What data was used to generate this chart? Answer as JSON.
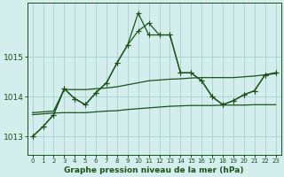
{
  "title": "Graphe pression niveau de la mer (hPa)",
  "bg_color": "#d4eeee",
  "grid_color": "#aad4d4",
  "line_color": "#1a5218",
  "x_labels": [
    "0",
    "1",
    "2",
    "3",
    "4",
    "5",
    "6",
    "7",
    "8",
    "9",
    "10",
    "11",
    "12",
    "13",
    "14",
    "15",
    "16",
    "17",
    "18",
    "19",
    "20",
    "21",
    "22",
    "23"
  ],
  "ylim": [
    1012.55,
    1016.35
  ],
  "yticks": [
    1013,
    1014,
    1015
  ],
  "series_zigzag": [
    1013.0,
    1013.25,
    1013.55,
    1014.2,
    1013.95,
    1013.8,
    1014.1,
    1014.35,
    1014.85,
    1015.3,
    1015.65,
    1015.85,
    1015.55,
    1015.55,
    1014.6,
    1014.6,
    1014.4,
    1014.0,
    1013.8,
    1013.9,
    1014.05,
    1014.15,
    1014.55,
    1014.6
  ],
  "series_peak": [
    1013.0,
    1013.25,
    1013.55,
    1014.2,
    1013.95,
    1013.8,
    1014.1,
    1014.35,
    1014.85,
    1015.3,
    1016.1,
    1015.55,
    1015.55,
    1015.55,
    1014.6,
    1014.6,
    1014.4,
    1014.0,
    1013.8,
    1013.9,
    1014.05,
    1014.15,
    1014.55,
    1014.6
  ],
  "series_upper_band": [
    1013.6,
    1013.62,
    1013.64,
    1014.18,
    1014.18,
    1014.18,
    1014.2,
    1014.22,
    1014.25,
    1014.3,
    1014.35,
    1014.4,
    1014.42,
    1014.44,
    1014.45,
    1014.47,
    1014.48,
    1014.48,
    1014.48,
    1014.48,
    1014.5,
    1014.52,
    1014.55,
    1014.58
  ],
  "series_lower_band": [
    1013.55,
    1013.57,
    1013.59,
    1013.6,
    1013.6,
    1013.6,
    1013.62,
    1013.64,
    1013.65,
    1013.68,
    1013.7,
    1013.72,
    1013.74,
    1013.76,
    1013.77,
    1013.78,
    1013.78,
    1013.78,
    1013.79,
    1013.79,
    1013.79,
    1013.8,
    1013.8,
    1013.8
  ]
}
